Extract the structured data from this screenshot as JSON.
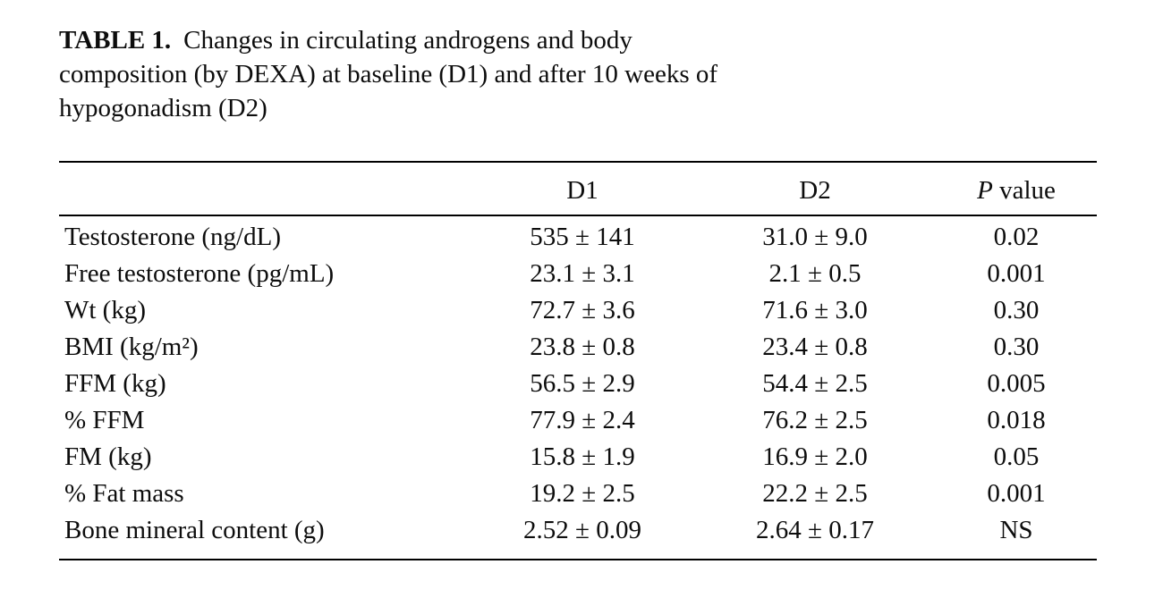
{
  "caption": {
    "label": "TABLE 1.",
    "lines": [
      "Changes in circulating androgens and body",
      "composition (by DEXA) at baseline (D1) and after 10 weeks of",
      "hypogonadism (D2)"
    ]
  },
  "table": {
    "columns": {
      "label": "",
      "d1": "D1",
      "d2": "D2",
      "p_italic": "P",
      "p_rest": " value"
    },
    "rows": [
      {
        "label": "Testosterone (ng/dL)",
        "d1": "535 ± 141",
        "d2": "31.0 ± 9.0",
        "p": "0.02"
      },
      {
        "label": "Free testosterone (pg/mL)",
        "d1": "23.1 ± 3.1",
        "d2": "2.1 ± 0.5",
        "p": "0.001"
      },
      {
        "label": "Wt (kg)",
        "d1": "72.7 ± 3.6",
        "d2": "71.6 ± 3.0",
        "p": "0.30"
      },
      {
        "label": "BMI (kg/m²)",
        "d1": "23.8 ± 0.8",
        "d2": "23.4 ± 0.8",
        "p": "0.30"
      },
      {
        "label": "FFM (kg)",
        "d1": "56.5 ± 2.9",
        "d2": "54.4 ± 2.5",
        "p": "0.005"
      },
      {
        "label": "% FFM",
        "d1": "77.9 ± 2.4",
        "d2": "76.2 ± 2.5",
        "p": "0.018"
      },
      {
        "label": "FM (kg)",
        "d1": "15.8 ± 1.9",
        "d2": "16.9 ± 2.0",
        "p": "0.05"
      },
      {
        "label": "% Fat mass",
        "d1": "19.2 ± 2.5",
        "d2": "22.2 ± 2.5",
        "p": "0.001"
      },
      {
        "label": "Bone mineral content (g)",
        "d1": "2.52 ± 0.09",
        "d2": "2.64 ± 0.17",
        "p": "NS"
      }
    ]
  },
  "colors": {
    "text": "#0d0d0d",
    "background": "#ffffff",
    "rule": "#000000"
  }
}
